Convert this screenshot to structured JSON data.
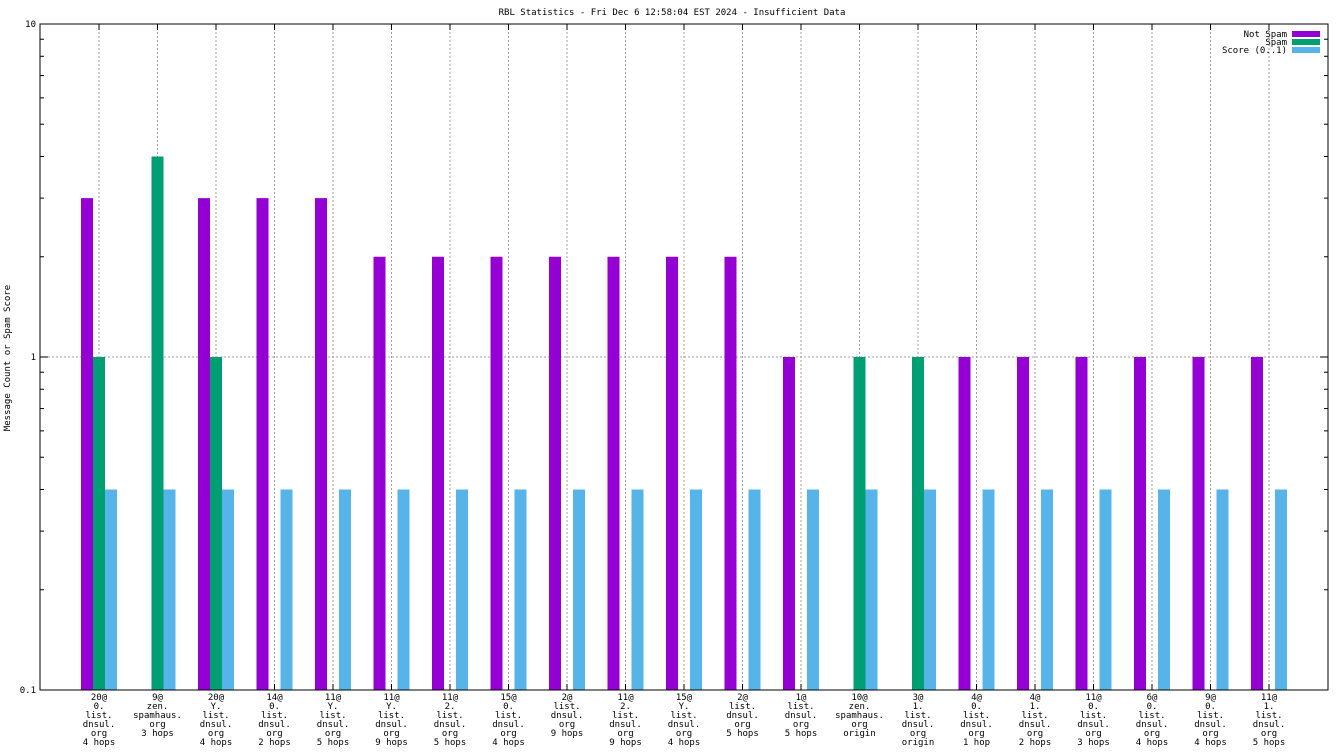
{
  "chart_data": {
    "type": "bar",
    "title": "RBL Statistics - Fri Dec  6 12:58:04 EST 2024 - Insufficient Data",
    "ylabel": "Message Count or Spam Score",
    "xlabel": "",
    "y_scale": "log",
    "ylim": [
      0.1,
      10
    ],
    "y_ticks": [
      "0.1",
      "1",
      "10"
    ],
    "grid": true,
    "legend_position": "top-right",
    "categories": [
      [
        "20@",
        "0.",
        "list.",
        "dnsul.",
        "org",
        "4 hops"
      ],
      [
        "9@",
        "zen.",
        "spamhaus.",
        "org",
        "3 hops"
      ],
      [
        "20@",
        "Y.",
        "list.",
        "dnsul.",
        "org",
        "4 hops"
      ],
      [
        "14@",
        "0.",
        "list.",
        "dnsul.",
        "org",
        "2 hops"
      ],
      [
        "11@",
        "Y.",
        "list.",
        "dnsul.",
        "org",
        "5 hops"
      ],
      [
        "11@",
        "Y.",
        "list.",
        "dnsul.",
        "org",
        "9 hops"
      ],
      [
        "11@",
        "2.",
        "list.",
        "dnsul.",
        "org",
        "5 hops"
      ],
      [
        "15@",
        "0.",
        "list.",
        "dnsul.",
        "org",
        "4 hops"
      ],
      [
        "2@",
        "list.",
        "dnsul.",
        "org",
        "9 hops"
      ],
      [
        "11@",
        "2.",
        "list.",
        "dnsul.",
        "org",
        "9 hops"
      ],
      [
        "15@",
        "Y.",
        "list.",
        "dnsul.",
        "org",
        "4 hops"
      ],
      [
        "2@",
        "list.",
        "dnsul.",
        "org",
        "5 hops"
      ],
      [
        "1@",
        "list.",
        "dnsul.",
        "org",
        "5 hops"
      ],
      [
        "10@",
        "zen.",
        "spamhaus.",
        "org",
        "origin"
      ],
      [
        "3@",
        "1.",
        "list.",
        "dnsul.",
        "org",
        "origin"
      ],
      [
        "4@",
        "0.",
        "list.",
        "dnsul.",
        "org",
        "1 hop"
      ],
      [
        "4@",
        "1.",
        "list.",
        "dnsul.",
        "org",
        "2 hops"
      ],
      [
        "11@",
        "0.",
        "list.",
        "dnsul.",
        "org",
        "3 hops"
      ],
      [
        "6@",
        "0.",
        "list.",
        "dnsul.",
        "org",
        "4 hops"
      ],
      [
        "9@",
        "0.",
        "list.",
        "dnsul.",
        "org",
        "4 hops"
      ],
      [
        "11@",
        "1.",
        "list.",
        "dnsul.",
        "org",
        "5 hops"
      ]
    ],
    "series": [
      {
        "name": "Not Spam",
        "color": "#9400d3",
        "values": [
          3,
          null,
          3,
          3,
          3,
          2,
          2,
          2,
          2,
          2,
          2,
          2,
          1,
          null,
          null,
          1,
          1,
          1,
          1,
          1,
          1
        ]
      },
      {
        "name": "Spam",
        "color": "#009e73",
        "values": [
          1,
          4,
          1,
          null,
          null,
          null,
          null,
          null,
          null,
          null,
          null,
          null,
          null,
          1,
          1,
          null,
          null,
          null,
          null,
          null,
          null
        ]
      },
      {
        "name": "Score (0..1)",
        "color": "#56b4e9",
        "values": [
          0.4,
          0.4,
          0.4,
          0.4,
          0.4,
          0.4,
          0.4,
          0.4,
          0.4,
          0.4,
          0.4,
          0.4,
          0.4,
          0.4,
          0.4,
          0.4,
          0.4,
          0.4,
          0.4,
          0.4,
          0.4
        ]
      }
    ]
  }
}
